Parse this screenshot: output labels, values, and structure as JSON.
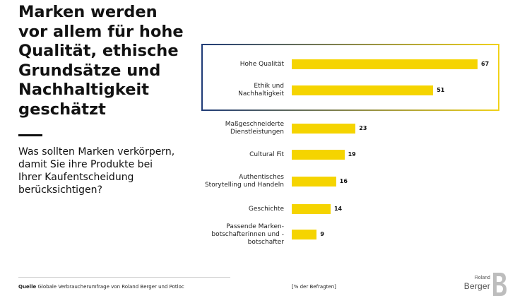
{
  "headline": "Marken werden\nvor allem für hohe\nQualität, ethische\nGrundsätze und\nNachhaltigkeit\ngeschätzt",
  "question": "Was sollten Marken verkörpern,\ndamit Sie ihre Produkte bei\nIhrer Kaufentscheidung\nberücksichtigen?",
  "chart_data": {
    "type": "bar",
    "orientation": "horizontal",
    "categories": [
      "Hohe Qualität",
      "Ethik und\nNachhaltigkeit",
      "Maßgeschneiderte\nDienstleistungen",
      "Cultural Fit",
      "Authentisches\nStorytelling und Handeln",
      "Geschichte",
      "Passende Marken-\nbotschafterinnen und -\nbotschafter"
    ],
    "values": [
      67,
      51,
      23,
      19,
      16,
      14,
      9
    ],
    "highlighted": [
      "Hohe Qualität",
      "Ethik und\nNachhaltigkeit"
    ],
    "unit_label": "[% der Befragten]",
    "xlim": [
      0,
      67
    ],
    "bar_color": "#f5d400",
    "highlight_border_colors": [
      "#1f3b77",
      "#f1d21a"
    ]
  },
  "footer": {
    "source_label": "Quelle",
    "source_text": "Globale Verbraucherumfrage von Roland Berger und Potloc"
  },
  "logo": {
    "small_text": "Roland",
    "big_text": "Berger"
  }
}
